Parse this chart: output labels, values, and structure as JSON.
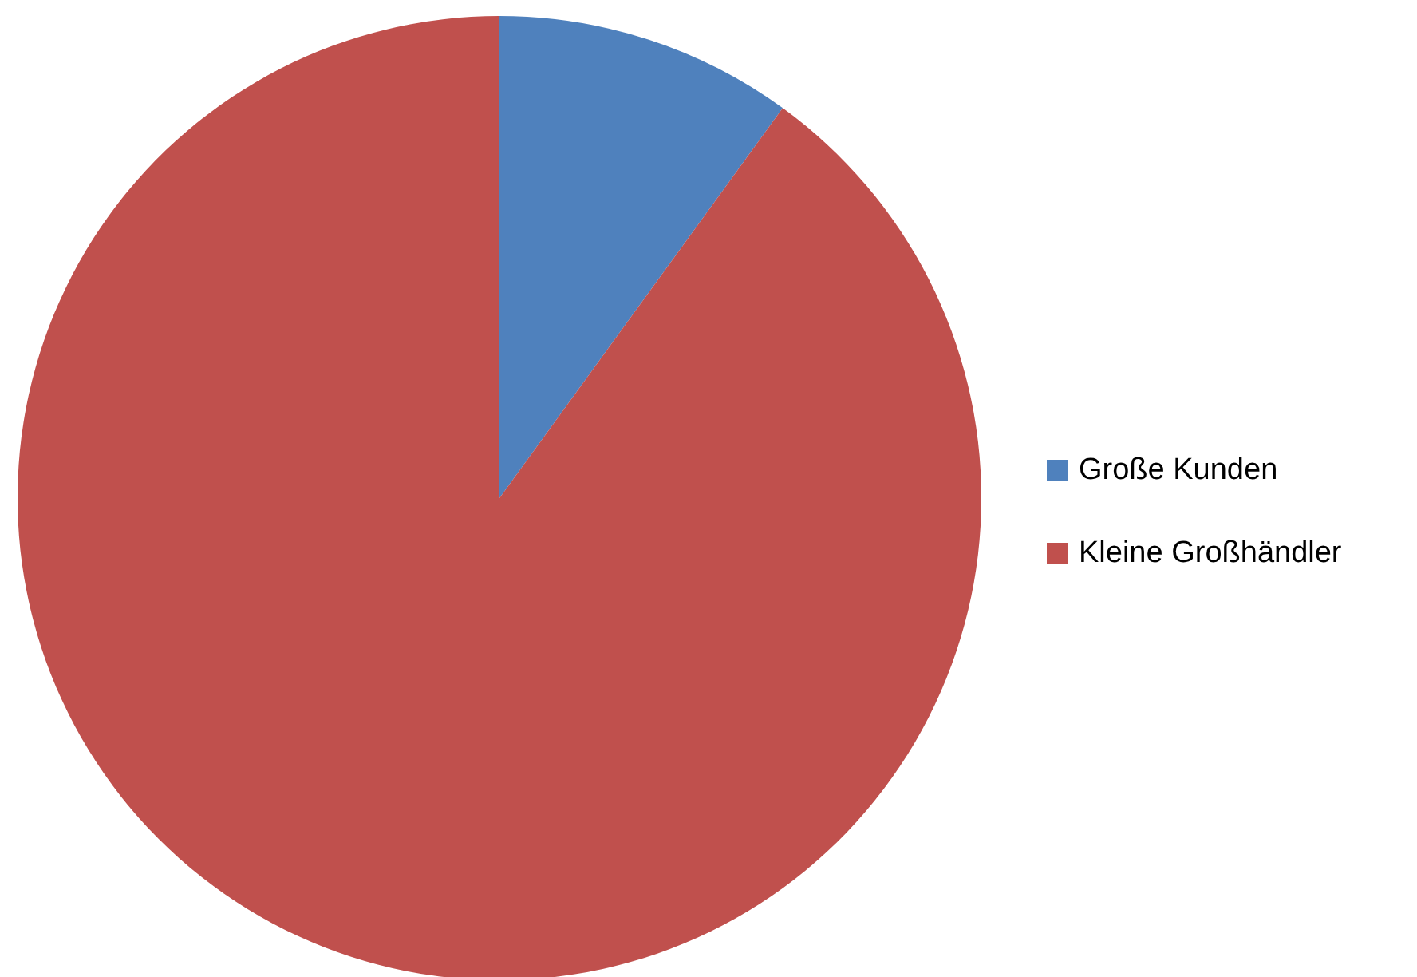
{
  "chart_data": {
    "type": "pie",
    "categories": [
      "Große Kunden",
      "Kleine Großhändler"
    ],
    "values": [
      10,
      90
    ],
    "colors": [
      "#4f81bd",
      "#c0504d"
    ],
    "legend": "right"
  }
}
